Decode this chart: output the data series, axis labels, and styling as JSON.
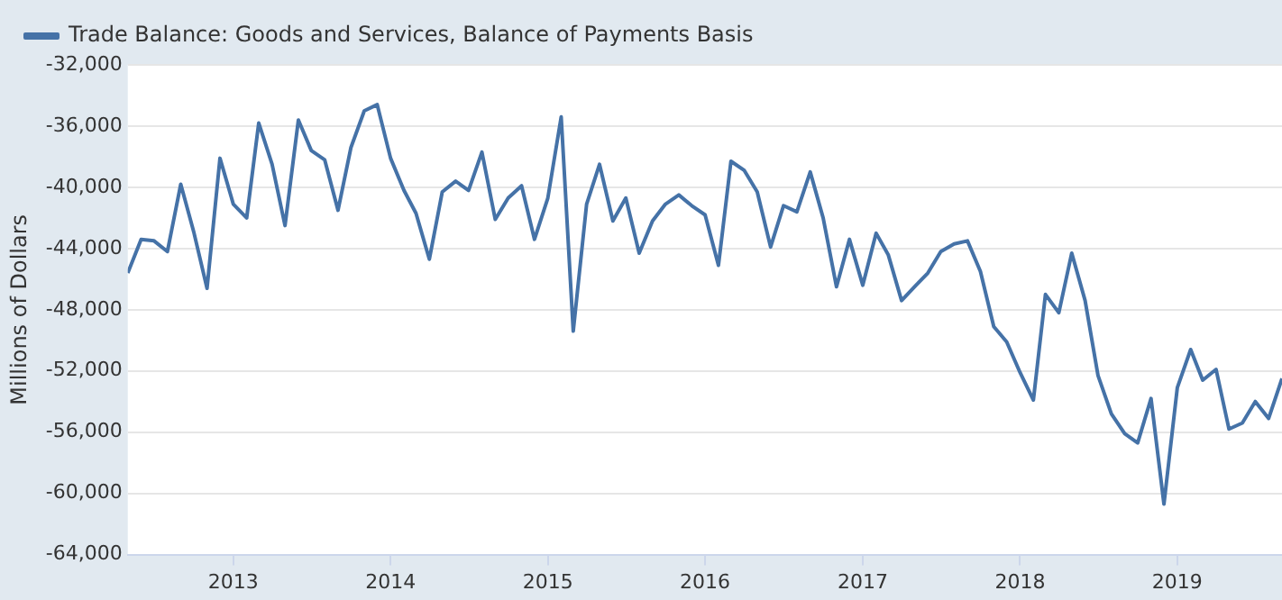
{
  "chart_data": {
    "type": "line",
    "ylabel": "Millions of Dollars",
    "legend": "top",
    "x": [
      "2012-05",
      "2012-06",
      "2012-07",
      "2012-08",
      "2012-09",
      "2012-10",
      "2012-11",
      "2012-12",
      "2013-01",
      "2013-02",
      "2013-03",
      "2013-04",
      "2013-05",
      "2013-06",
      "2013-07",
      "2013-08",
      "2013-09",
      "2013-10",
      "2013-11",
      "2013-12",
      "2014-01",
      "2014-02",
      "2014-03",
      "2014-04",
      "2014-05",
      "2014-06",
      "2014-07",
      "2014-08",
      "2014-09",
      "2014-10",
      "2014-11",
      "2014-12",
      "2015-01",
      "2015-02",
      "2015-03",
      "2015-04",
      "2015-05",
      "2015-06",
      "2015-07",
      "2015-08",
      "2015-09",
      "2015-10",
      "2015-11",
      "2015-12",
      "2016-01",
      "2016-02",
      "2016-03",
      "2016-04",
      "2016-05",
      "2016-06",
      "2016-07",
      "2016-08",
      "2016-09",
      "2016-10",
      "2016-11",
      "2016-12",
      "2017-01",
      "2017-02",
      "2017-03",
      "2017-04",
      "2017-05",
      "2017-06",
      "2017-07",
      "2017-08",
      "2017-09",
      "2017-10",
      "2017-11",
      "2017-12",
      "2018-01",
      "2018-02",
      "2018-03",
      "2018-04",
      "2018-05",
      "2018-06",
      "2018-07",
      "2018-08",
      "2018-09",
      "2018-10",
      "2018-11",
      "2018-12",
      "2019-01",
      "2019-02",
      "2019-03",
      "2019-04",
      "2019-05",
      "2019-06",
      "2019-07",
      "2019-08",
      "2019-09"
    ],
    "series": [
      {
        "name": "Trade Balance: Goods and Services, Balance of Payments Basis",
        "color": "#4572a7",
        "values": [
          -45600,
          -43400,
          -43500,
          -44200,
          -39800,
          -42900,
          -46600,
          -38100,
          -41100,
          -42000,
          -35800,
          -38500,
          -42500,
          -35600,
          -37600,
          -38200,
          -41500,
          -37400,
          -35000,
          -34600,
          -38100,
          -40200,
          -41700,
          -44700,
          -40300,
          -39600,
          -40200,
          -37700,
          -42100,
          -40700,
          -39900,
          -43400,
          -40700,
          -35400,
          -49400,
          -41100,
          -38500,
          -42200,
          -40700,
          -44300,
          -42200,
          -41100,
          -40500,
          -41200,
          -41800,
          -45100,
          -38300,
          -38900,
          -40300,
          -43900,
          -41200,
          -41600,
          -39000,
          -42000,
          -46500,
          -43400,
          -46400,
          -43000,
          -44400,
          -47400,
          -46500,
          -45600,
          -44200,
          -43700,
          -43500,
          -45500,
          -49100,
          -50100,
          -52100,
          -53900,
          -47000,
          -48200,
          -44300,
          -47400,
          -52300,
          -54800,
          -56100,
          -56700,
          -53800,
          -60700,
          -53100,
          -50600,
          -52600,
          -51900,
          -55800,
          -55400,
          -54000,
          -55100,
          -52500
        ]
      }
    ],
    "xlim": [
      "2012-05",
      "2019-09"
    ],
    "xticks": [
      "2013",
      "2014",
      "2015",
      "2016",
      "2017",
      "2018",
      "2019"
    ],
    "ylim": [
      -64000,
      -32000
    ],
    "yticks": [
      {
        "value": -64000,
        "label": "-64,000"
      },
      {
        "value": -60000,
        "label": "-60,000"
      },
      {
        "value": -56000,
        "label": "-56,000"
      },
      {
        "value": -52000,
        "label": "-52,000"
      },
      {
        "value": -48000,
        "label": "-48,000"
      },
      {
        "value": -44000,
        "label": "-44,000"
      },
      {
        "value": -40000,
        "label": "-40,000"
      },
      {
        "value": -36000,
        "label": "-36,000"
      },
      {
        "value": -32000,
        "label": "-32,000"
      }
    ],
    "grid": "y",
    "marker": "none",
    "line_style": "solid"
  }
}
